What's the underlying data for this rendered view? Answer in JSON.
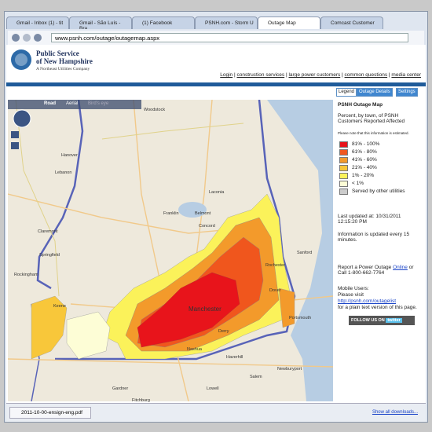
{
  "browser": {
    "tabs": [
      "Gmail - Inbox (1) - tit",
      "Gmail - São Luís - Bra",
      "(1) Facebook",
      "PSNH.com - Storm U",
      "Outage Map",
      "Comcast Customer"
    ],
    "url": "www.psnh.com/outage/outagemap.aspx"
  },
  "header": {
    "company_line1": "Public Service",
    "company_line2": "of New Hampshire",
    "tagline": "A Northeast Utilities Company",
    "nav": [
      "Login",
      "construction services",
      "large power customers",
      "common questions",
      "media center"
    ]
  },
  "map": {
    "view_tabs": [
      "Road",
      "Aerial",
      "Bird's eye"
    ],
    "labels": [
      "Woodstock",
      "Hanover",
      "Lebanon",
      "Claremont",
      "Franklin",
      "Belmont",
      "Laconia",
      "Concord",
      "Springfield",
      "Rockingham",
      "Keene",
      "Manchester",
      "Nashua",
      "Derry",
      "Rochester",
      "Dover",
      "Sanford",
      "Portsmouth",
      "Haverhill",
      "Lowell",
      "Gardner",
      "Fitchburg",
      "Newburyport",
      "Salem"
    ]
  },
  "panel": {
    "tabs": [
      "Legend",
      "Outage Details",
      "Settings"
    ],
    "title": "PSNH Outage Map",
    "description": "Percent, by town, of PSNH Customers Reported Affected",
    "note": "Please note that this information is estimated.",
    "legend": [
      {
        "label": "81% - 100%",
        "color": "#e8141b"
      },
      {
        "label": "61% - 80%",
        "color": "#f0561d"
      },
      {
        "label": "41% - 60%",
        "color": "#f39a2b"
      },
      {
        "label": "21% - 40%",
        "color": "#f8c73a"
      },
      {
        "label": "1% - 20%",
        "color": "#fbf25a"
      },
      {
        "label": "< 1%",
        "color": "#fdfdd6"
      },
      {
        "label": "Served by other utilities",
        "color": "#cccccc"
      }
    ],
    "last_updated": "Last updated at: 10/31/2011 12:15:20 PM",
    "update_info": "Information is updated every 15 minutes.",
    "report_text": "Report a Power Outage",
    "report_link": "Online",
    "report_or": "or",
    "report_call": "Call 1-800-662-7764",
    "mobile_title": "Mobile Users:",
    "mobile_text": "Please visit",
    "mobile_link": "http://psnh.com/outagelist",
    "mobile_tail": "for a plain text version of this page.",
    "follow": "FOLLOW US ON",
    "follow_brand": "twitter"
  },
  "downloads": {
    "file": "2011-10-00-ensign-eng.pdf",
    "show_all": "Show all downloads..."
  }
}
